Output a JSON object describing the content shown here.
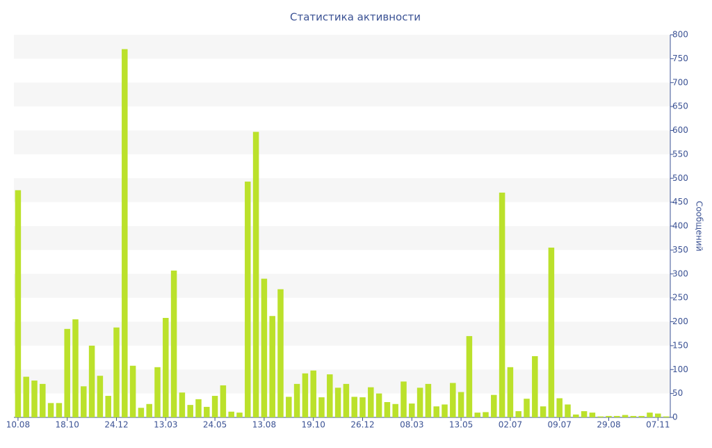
{
  "chart_data": {
    "type": "bar",
    "title": "Статистика активности",
    "y_label": "Сообщений",
    "categories": [
      "10.08",
      null,
      null,
      null,
      null,
      null,
      "18.10",
      null,
      null,
      null,
      null,
      null,
      "24.12",
      null,
      null,
      null,
      null,
      null,
      "13.03",
      null,
      null,
      null,
      null,
      null,
      "24.05",
      null,
      null,
      null,
      null,
      null,
      "13.08",
      null,
      null,
      null,
      null,
      null,
      "19.10",
      null,
      null,
      null,
      null,
      null,
      "26.12",
      null,
      null,
      null,
      null,
      null,
      "08.03",
      null,
      null,
      null,
      null,
      null,
      "13.05",
      null,
      null,
      null,
      null,
      null,
      "02.07",
      null,
      null,
      null,
      null,
      null,
      "09.07",
      null,
      null,
      null,
      null,
      null,
      "29.08",
      null,
      null,
      null,
      null,
      null,
      "07.11",
      null
    ],
    "values": [
      475,
      85,
      77,
      70,
      30,
      30,
      185,
      205,
      65,
      150,
      87,
      45,
      188,
      770,
      108,
      20,
      28,
      105,
      208,
      307,
      52,
      26,
      38,
      22,
      45,
      67,
      12,
      10,
      493,
      597,
      290,
      212,
      268,
      43,
      70,
      92,
      98,
      42,
      90,
      62,
      70,
      43,
      42,
      63,
      50,
      32,
      28,
      75,
      29,
      62,
      70,
      23,
      27,
      72,
      53,
      170,
      10,
      11,
      47,
      470,
      105,
      13,
      39,
      128,
      23,
      355,
      40,
      27,
      6,
      13,
      10,
      2,
      3,
      3,
      5,
      3,
      3,
      10,
      8,
      2
    ],
    "color": "#bbe12b",
    "ylim": [
      0,
      800
    ],
    "yticks": [
      0,
      50,
      100,
      150,
      200,
      250,
      300,
      350,
      400,
      450,
      500,
      550,
      600,
      650,
      700,
      750,
      800
    ],
    "grid": true
  }
}
